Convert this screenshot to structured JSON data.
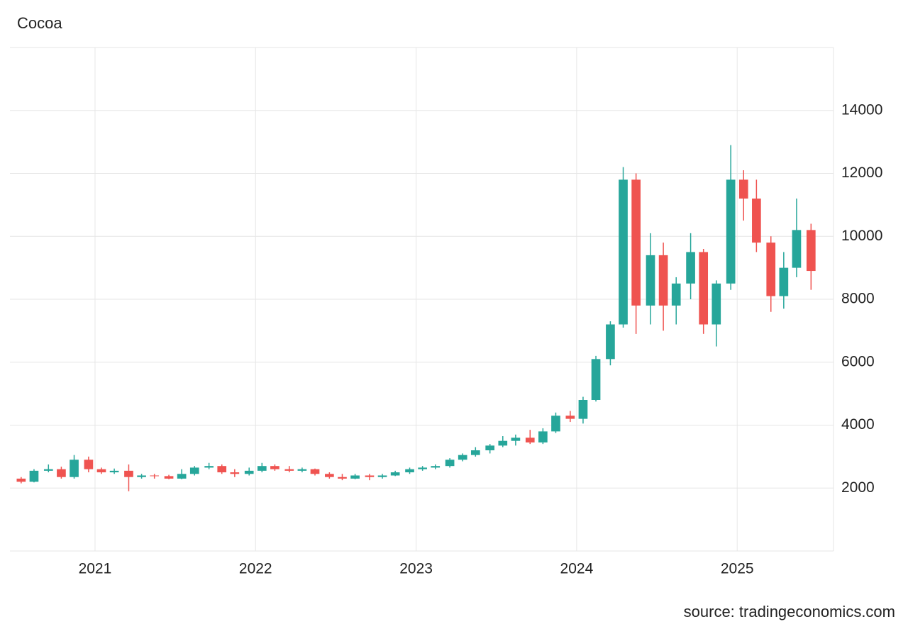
{
  "chart_data": {
    "type": "candlestick",
    "title": "Cocoa",
    "source": "source: tradingeconomics.com",
    "up_color": "#26a69a",
    "down_color": "#ef5350",
    "grid": true,
    "xlim": [
      2020.47,
      2025.6
    ],
    "xticks": [
      2021,
      2022,
      2023,
      2024,
      2025
    ],
    "ylim": [
      0,
      16000
    ],
    "yticks": [
      2000,
      4000,
      6000,
      8000,
      10000,
      12000,
      14000
    ],
    "x": [
      2020.54,
      2020.62,
      2020.71,
      2020.79,
      2020.87,
      2020.96,
      2021.04,
      2021.12,
      2021.21,
      2021.29,
      2021.37,
      2021.46,
      2021.54,
      2021.62,
      2021.71,
      2021.79,
      2021.87,
      2021.96,
      2022.04,
      2022.12,
      2022.21,
      2022.29,
      2022.37,
      2022.46,
      2022.54,
      2022.62,
      2022.71,
      2022.79,
      2022.87,
      2022.96,
      2023.04,
      2023.12,
      2023.21,
      2023.29,
      2023.37,
      2023.46,
      2023.54,
      2023.62,
      2023.71,
      2023.79,
      2023.87,
      2023.96,
      2024.04,
      2024.12,
      2024.21,
      2024.29,
      2024.37,
      2024.46,
      2024.54,
      2024.62,
      2024.71,
      2024.79,
      2024.87,
      2024.96,
      2025.04,
      2025.12,
      2025.21,
      2025.29,
      2025.37,
      2025.46
    ],
    "open": [
      2300,
      2200,
      2550,
      2600,
      2350,
      2900,
      2600,
      2500,
      2550,
      2350,
      2400,
      2380,
      2300,
      2450,
      2650,
      2700,
      2500,
      2450,
      2550,
      2700,
      2600,
      2550,
      2600,
      2450,
      2350,
      2300,
      2400,
      2350,
      2400,
      2500,
      2600,
      2650,
      2700,
      2900,
      3050,
      3200,
      3350,
      3500,
      3600,
      3450,
      3800,
      4300,
      4200,
      4800,
      6100,
      7200,
      11800,
      7800,
      9400,
      7800,
      8500,
      9500,
      7200,
      8500,
      11800,
      11200,
      9800,
      8100,
      9000,
      10200
    ],
    "high": [
      2350,
      2600,
      2750,
      2680,
      3050,
      3000,
      2650,
      2620,
      2750,
      2450,
      2450,
      2420,
      2600,
      2700,
      2800,
      2750,
      2600,
      2650,
      2800,
      2750,
      2700,
      2650,
      2620,
      2500,
      2450,
      2450,
      2450,
      2450,
      2550,
      2650,
      2700,
      2750,
      2950,
      3100,
      3300,
      3400,
      3650,
      3700,
      3850,
      3900,
      4400,
      4450,
      4900,
      6200,
      7300,
      12200,
      12000,
      10100,
      9800,
      8700,
      10100,
      9600,
      8600,
      12900,
      12100,
      11800,
      10000,
      9500,
      11200,
      10400
    ],
    "low": [
      2150,
      2180,
      2500,
      2300,
      2300,
      2500,
      2450,
      2450,
      1900,
      2300,
      2300,
      2280,
      2280,
      2400,
      2600,
      2450,
      2350,
      2400,
      2500,
      2550,
      2500,
      2500,
      2400,
      2300,
      2250,
      2280,
      2250,
      2300,
      2380,
      2450,
      2550,
      2600,
      2650,
      2850,
      3000,
      3100,
      3300,
      3350,
      3400,
      3400,
      3750,
      4100,
      4050,
      4750,
      5900,
      7100,
      6900,
      7200,
      7000,
      7200,
      8000,
      6900,
      6500,
      8300,
      10500,
      9500,
      7600,
      7700,
      8700,
      8300
    ],
    "close": [
      2200,
      2550,
      2600,
      2350,
      2900,
      2600,
      2500,
      2550,
      2350,
      2400,
      2380,
      2300,
      2450,
      2650,
      2700,
      2500,
      2450,
      2550,
      2700,
      2600,
      2550,
      2600,
      2450,
      2350,
      2300,
      2400,
      2350,
      2400,
      2500,
      2600,
      2650,
      2700,
      2900,
      3050,
      3200,
      3350,
      3500,
      3600,
      3450,
      3800,
      4300,
      4200,
      4800,
      6100,
      7200,
      11800,
      7800,
      9400,
      7800,
      8500,
      9500,
      7200,
      8500,
      11800,
      11200,
      9800,
      8100,
      9000,
      10200,
      8900
    ]
  }
}
